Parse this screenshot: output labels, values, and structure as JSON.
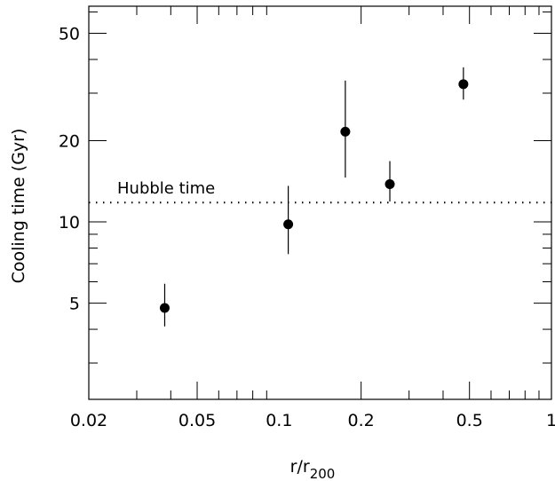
{
  "chart_data": {
    "type": "scatter",
    "title": "",
    "xlabel": "r/r",
    "xlabel_sub": "200",
    "ylabel": "Cooling time (Gyr)",
    "xscale": "log",
    "yscale": "log",
    "xlim": [
      0.02,
      1
    ],
    "ylim": [
      2.2,
      63
    ],
    "xticks": [
      {
        "value": 0.02,
        "label": "0.02"
      },
      {
        "value": 0.05,
        "label": "0.05"
      },
      {
        "value": 0.1,
        "label": "0.1"
      },
      {
        "value": 0.2,
        "label": "0.2"
      },
      {
        "value": 0.5,
        "label": "0.5"
      },
      {
        "value": 1,
        "label": "1"
      }
    ],
    "yticks": [
      {
        "value": 5,
        "label": "5"
      },
      {
        "value": 10,
        "label": "10"
      },
      {
        "value": 20,
        "label": "20"
      },
      {
        "value": 50,
        "label": "50"
      }
    ],
    "points": [
      {
        "x": 0.038,
        "y": 4.8,
        "ylow": 4.1,
        "yhigh": 5.9
      },
      {
        "x": 0.108,
        "y": 9.8,
        "ylow": 7.6,
        "yhigh": 13.6
      },
      {
        "x": 0.175,
        "y": 21.6,
        "ylow": 14.6,
        "yhigh": 33.4
      },
      {
        "x": 0.255,
        "y": 13.8,
        "ylow": 11.9,
        "yhigh": 16.8
      },
      {
        "x": 0.475,
        "y": 32.4,
        "ylow": 28.4,
        "yhigh": 37.4
      }
    ],
    "reference_line": {
      "y": 11.8,
      "style": "dotted",
      "label": "Hubble time"
    },
    "grid": false,
    "legend": "none"
  }
}
